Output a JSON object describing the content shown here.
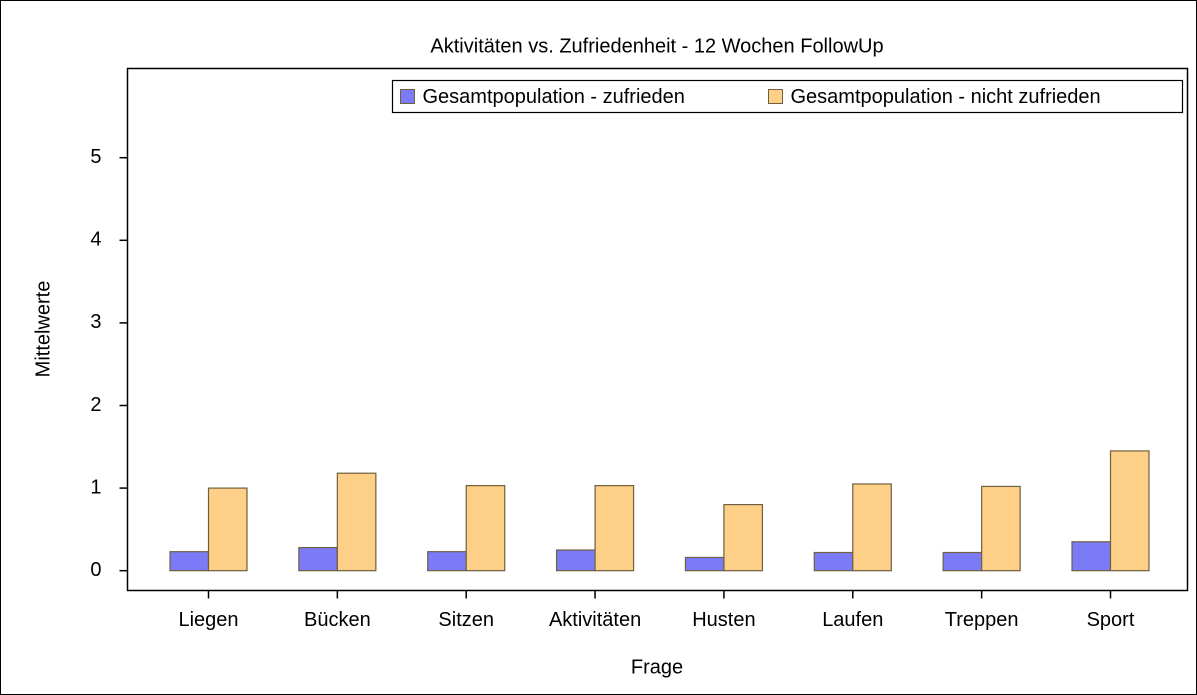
{
  "chart_data": {
    "type": "bar",
    "title": "Aktivitäten vs. Zufriedenheit - 12 Wochen FollowUp",
    "x_label": "Frage",
    "y_label": "Mittelwerte",
    "categories": [
      "Liegen",
      "Bücken",
      "Sitzen",
      "Aktivitäten",
      "Husten",
      "Laufen",
      "Treppen",
      "Sport"
    ],
    "series": [
      {
        "name": "Gesamtpopulation - zufrieden",
        "color": "#7b7bf7",
        "values": [
          0.23,
          0.28,
          0.23,
          0.25,
          0.16,
          0.22,
          0.22,
          0.35
        ]
      },
      {
        "name": "Gesamtpopulation - nicht zufrieden",
        "color": "#fecf86",
        "values": [
          1.0,
          1.18,
          1.03,
          1.03,
          0.8,
          1.05,
          1.02,
          1.45
        ]
      }
    ],
    "ylim": [
      -0.24,
      6.08
    ],
    "yticks": [
      0,
      1,
      2,
      3,
      4,
      5
    ],
    "legend": "top-right"
  }
}
